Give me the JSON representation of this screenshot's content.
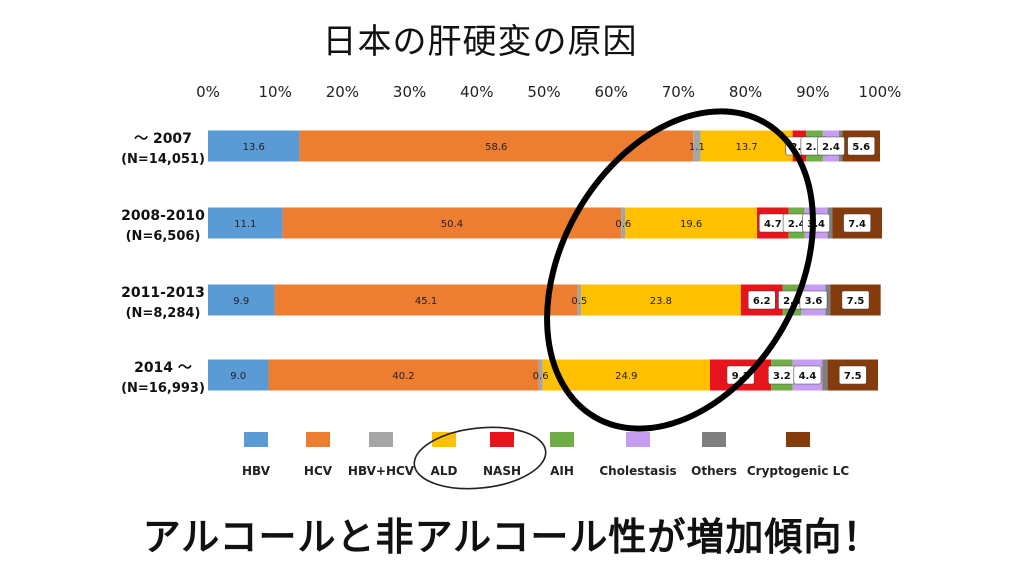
{
  "title": "日本の肝硬変の原因",
  "caption": "アルコールと非アルコール性が増加傾向！",
  "chart_data": {
    "type": "bar",
    "orientation": "horizontal",
    "stacked": true,
    "x_ticks": [
      "0%",
      "10%",
      "20%",
      "30%",
      "40%",
      "50%",
      "60%",
      "70%",
      "80%",
      "90%",
      "100%"
    ],
    "xlim": [
      0,
      100
    ],
    "categories": [
      {
        "period": "～ 2007",
        "n": "(N=14,051)"
      },
      {
        "period": "2008-2010",
        "n": "(N=6,506)"
      },
      {
        "period": "2011-2013",
        "n": "(N=8,284)"
      },
      {
        "period": "2014 ～",
        "n": "(N=16,993)"
      }
    ],
    "series": [
      {
        "name": "HBV",
        "color": "#5b9bd5",
        "values": [
          13.6,
          11.1,
          9.9,
          9.0
        ],
        "labels": [
          "13.6",
          "11.1",
          "9.9",
          "9.0"
        ]
      },
      {
        "name": "HCV",
        "color": "#ed7d31",
        "values": [
          58.6,
          50.4,
          45.1,
          40.2
        ],
        "labels": [
          "58.6",
          "50.4",
          "45.1",
          "40.2"
        ]
      },
      {
        "name": "HBV+HCV",
        "color": "#a5a5a5",
        "values": [
          1.1,
          0.6,
          0.5,
          0.6
        ],
        "labels": [
          "1.1",
          "0.6",
          "0.5",
          "0.6"
        ]
      },
      {
        "name": "ALD",
        "color": "#ffc000",
        "values": [
          13.7,
          19.6,
          23.8,
          24.9
        ],
        "labels": [
          "13.7",
          "19.6",
          "23.8",
          "24.9"
        ]
      },
      {
        "name": "NASH",
        "color": "#e8141b",
        "values": [
          2.0,
          4.7,
          6.2,
          9.1
        ],
        "labels": [
          "2.0",
          "4.7",
          "6.2",
          "9.1"
        ]
      },
      {
        "name": "AIH",
        "color": "#70ad47",
        "values": [
          2.5,
          2.4,
          2.8,
          3.2
        ],
        "labels": [
          "2.5",
          "2.4",
          "2.8",
          "3.2"
        ]
      },
      {
        "name": "Cholestasis",
        "color": "#c59ef2",
        "values": [
          2.4,
          3.4,
          3.6,
          4.4
        ],
        "labels": [
          "2.4",
          "3.4",
          "3.6",
          "4.4"
        ]
      },
      {
        "name": "Others",
        "color": "#7f7f7f",
        "values": [
          0.5,
          0.7,
          0.7,
          0.8
        ],
        "labels": [
          "",
          "",
          "",
          ""
        ]
      },
      {
        "name": "Cryptogenic LC",
        "color": "#843c0c",
        "values": [
          5.6,
          7.4,
          7.5,
          7.5
        ],
        "labels": [
          "5.6",
          "7.4",
          "7.5",
          "7.5"
        ]
      }
    ],
    "boxed_labels": [
      "NASH",
      "AIH",
      "Cholestasis",
      "Cryptogenic LC"
    ],
    "legend_position": "bottom",
    "highlight": "ALD, NASH"
  }
}
